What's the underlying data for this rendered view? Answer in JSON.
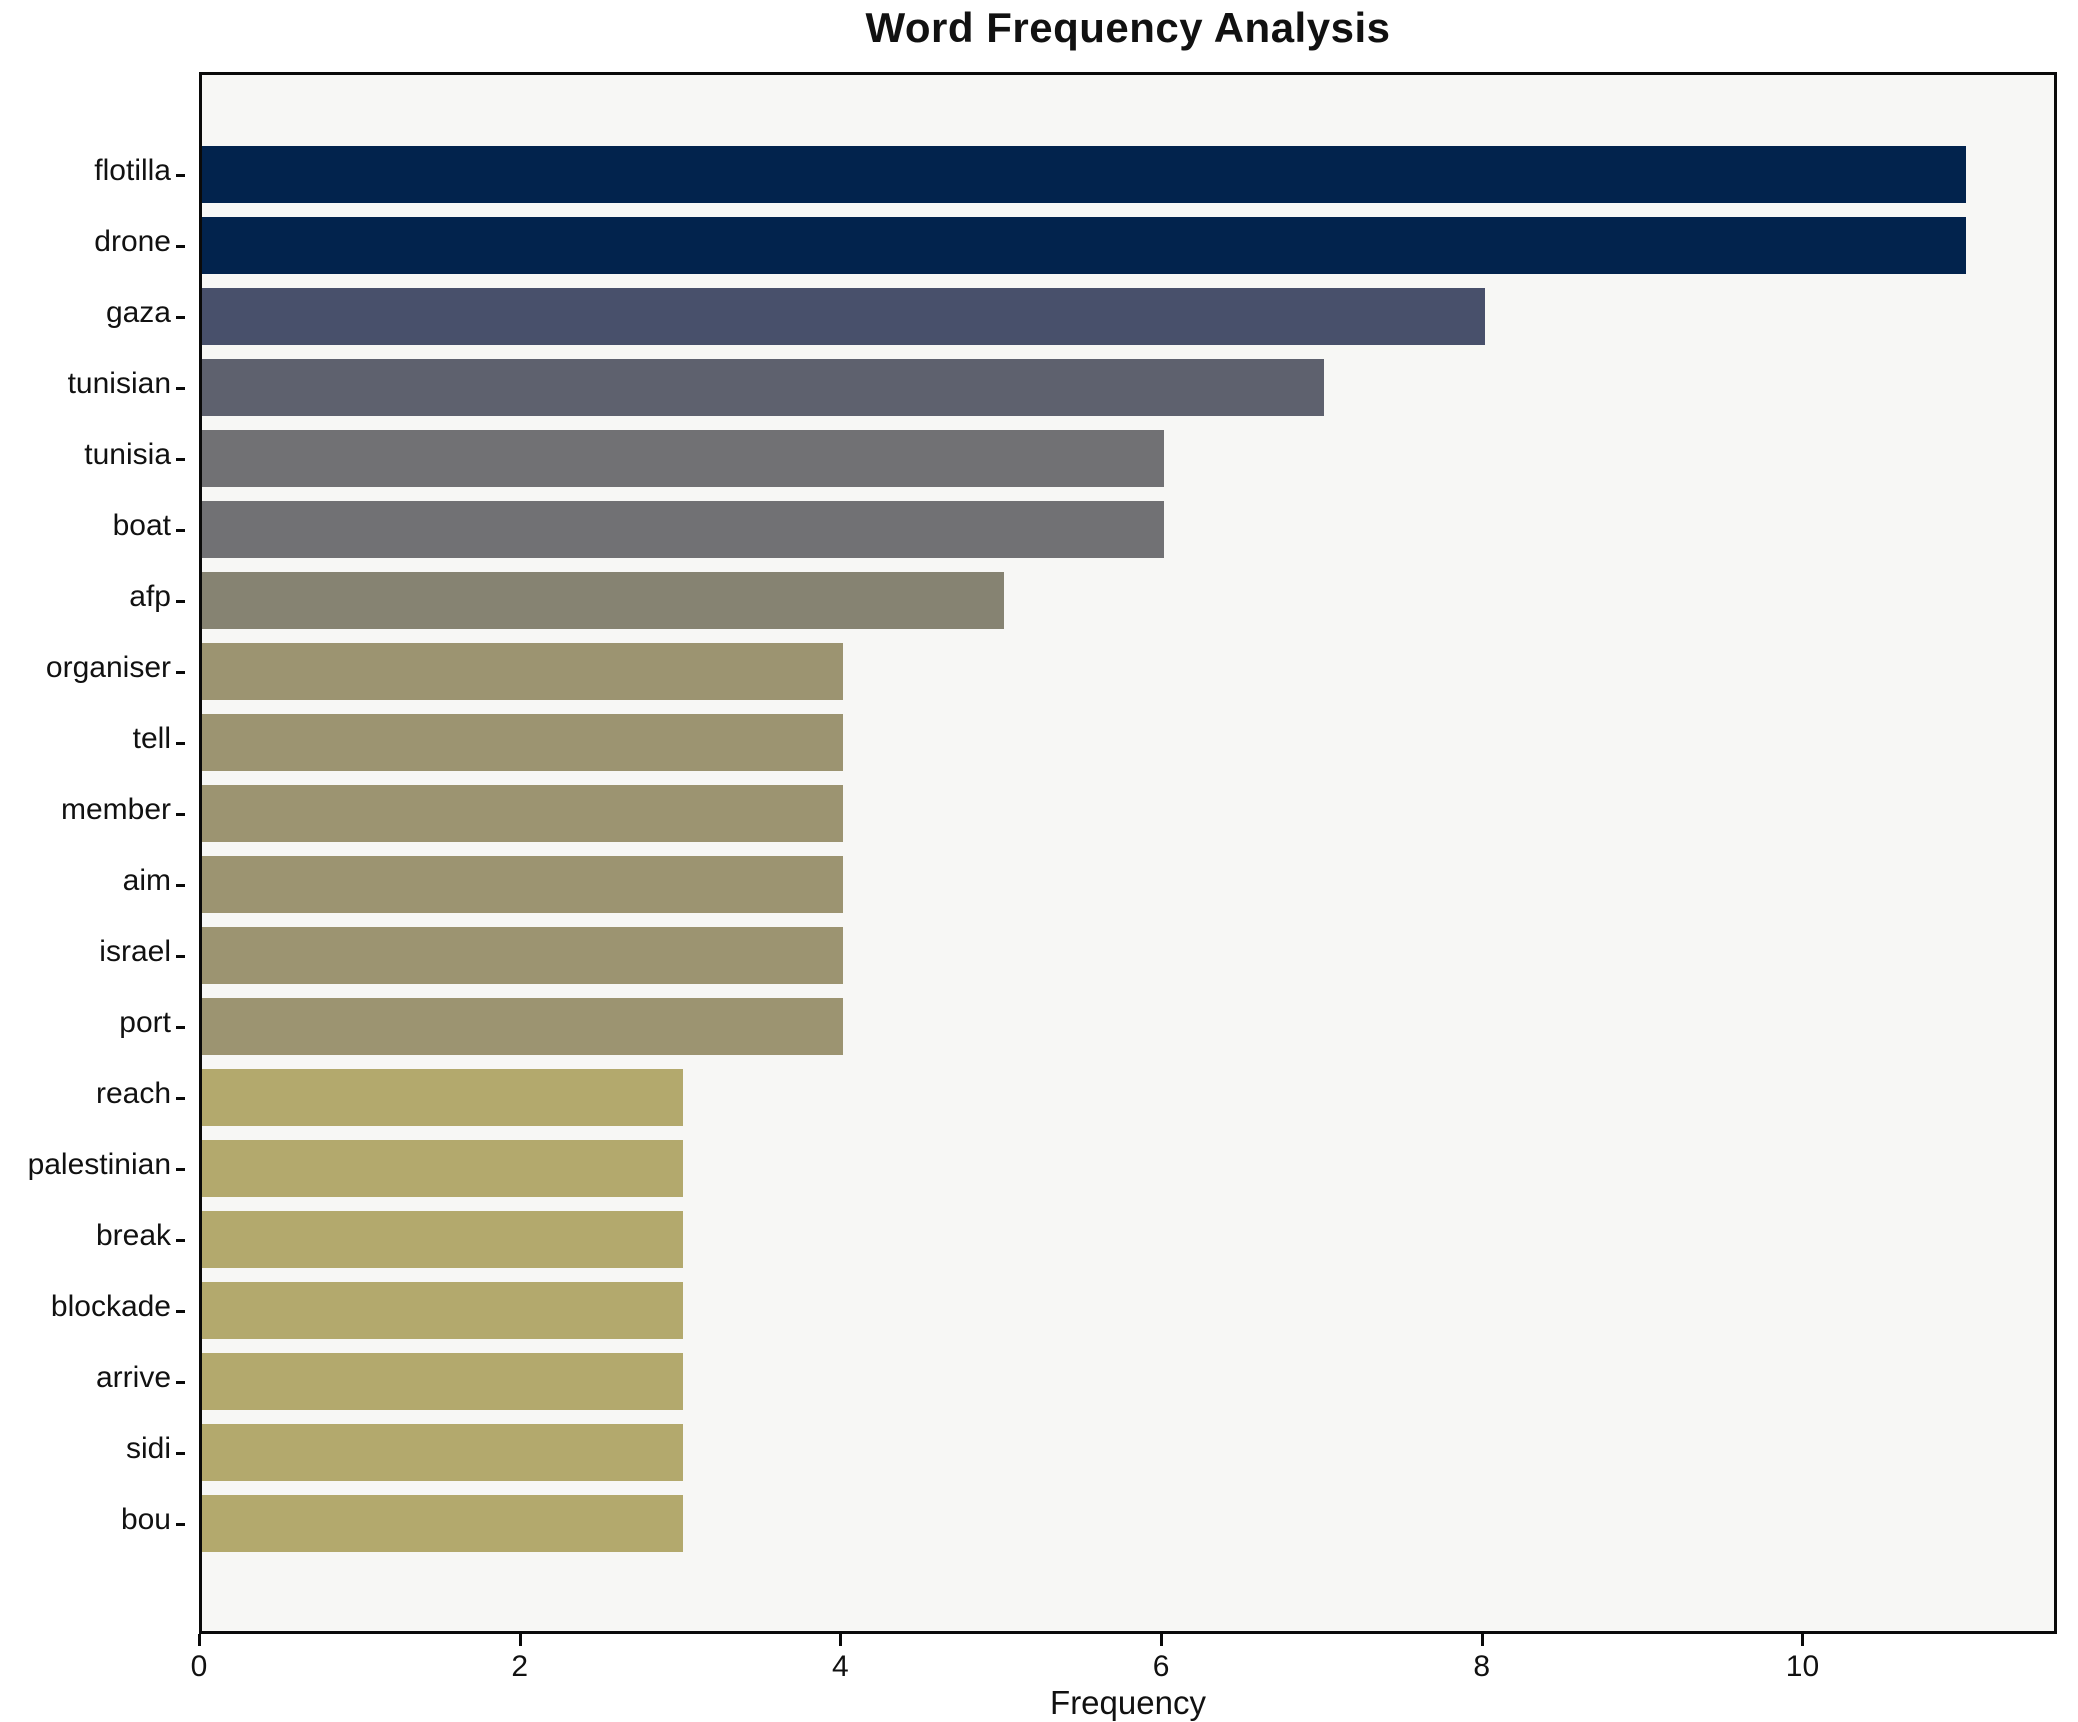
{
  "chart_data": {
    "type": "bar",
    "orientation": "horizontal",
    "title": "Word Frequency Analysis",
    "xlabel": "Frequency",
    "ylabel": "",
    "categories": [
      "flotilla",
      "drone",
      "gaza",
      "tunisian",
      "tunisia",
      "boat",
      "afp",
      "organiser",
      "tell",
      "member",
      "aim",
      "israel",
      "port",
      "reach",
      "palestinian",
      "break",
      "blockade",
      "arrive",
      "sidi",
      "bou"
    ],
    "values": [
      11,
      11,
      8,
      7,
      6,
      6,
      5,
      4,
      4,
      4,
      4,
      4,
      4,
      3,
      3,
      3,
      3,
      3,
      3,
      3
    ],
    "bar_colors": [
      "#02234d",
      "#02234d",
      "#48506b",
      "#5e616e",
      "#717174",
      "#717174",
      "#868372",
      "#9c9471",
      "#9c9471",
      "#9c9471",
      "#9c9471",
      "#9c9471",
      "#9c9471",
      "#b3a96d",
      "#b3a96d",
      "#b3a96d",
      "#b3a96d",
      "#b3a96d",
      "#b3a96d",
      "#b3a96d"
    ],
    "xticks": [
      0,
      2,
      4,
      6,
      8,
      10
    ],
    "xlim": [
      0,
      11.55
    ],
    "grid": false,
    "legend_position": "none",
    "plot_background": "#f7f7f5",
    "figure_background": "#ffffff",
    "axis_color": "#0a0a0a",
    "text_color": "#111111"
  }
}
